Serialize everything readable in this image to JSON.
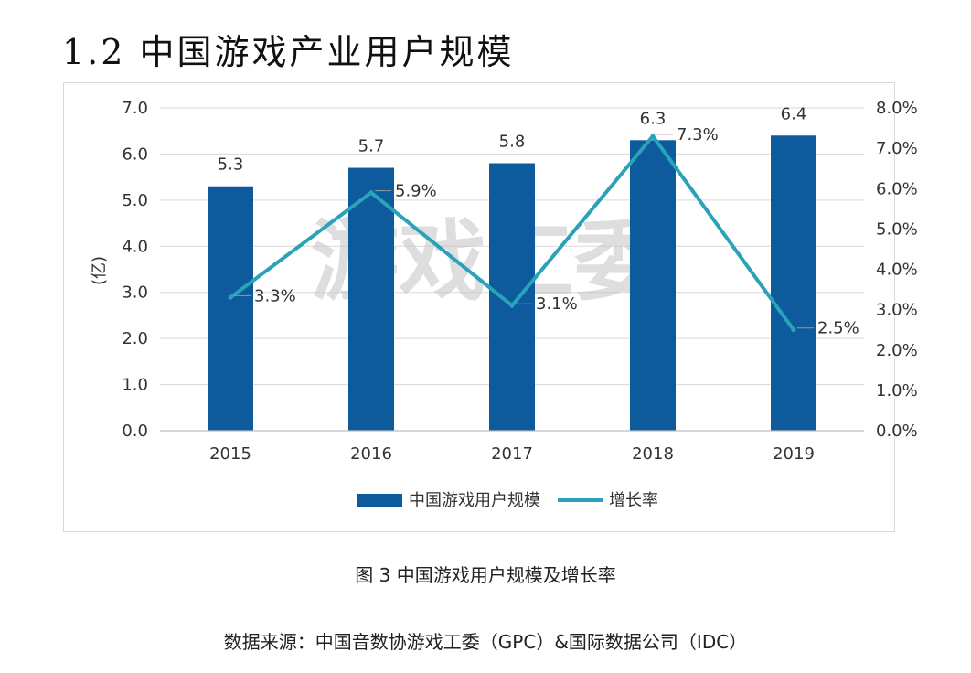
{
  "heading": "1.2 中国游戏产业用户规模",
  "caption": "图 3 中国游戏用户规模及增长率",
  "source": "数据来源：中国音数协游戏工委（GPC）&国际数据公司（IDC）",
  "watermark": "游戏工委",
  "colors": {
    "bar": "#0d5a9c",
    "line": "#2aa3b8",
    "grid": "#d9d9d9",
    "axis": "#bfbfbf"
  },
  "chart_data": {
    "type": "bar",
    "title": "",
    "categories": [
      "2015",
      "2016",
      "2017",
      "2018",
      "2019"
    ],
    "series": [
      {
        "name": "中国游戏用户规模",
        "type": "bar",
        "axis": "left",
        "values": [
          5.3,
          5.7,
          5.8,
          6.3,
          6.4
        ],
        "labels": [
          "5.3",
          "5.7",
          "5.8",
          "6.3",
          "6.4"
        ]
      },
      {
        "name": "增长率",
        "type": "line",
        "axis": "right",
        "values": [
          3.3,
          5.9,
          3.1,
          7.3,
          2.5
        ],
        "labels": [
          "3.3%",
          "5.9%",
          "3.1%",
          "7.3%",
          "2.5%"
        ]
      }
    ],
    "ylabel": "(亿)",
    "ylim": [
      0,
      7
    ],
    "y_ticks": [
      "0.0",
      "1.0",
      "2.0",
      "3.0",
      "4.0",
      "5.0",
      "6.0",
      "7.0"
    ],
    "y2lim": [
      0,
      8
    ],
    "y2_ticks": [
      "0.0%",
      "1.0%",
      "2.0%",
      "3.0%",
      "4.0%",
      "5.0%",
      "6.0%",
      "7.0%",
      "8.0%"
    ],
    "grid": true,
    "legend": "bottom-center"
  }
}
